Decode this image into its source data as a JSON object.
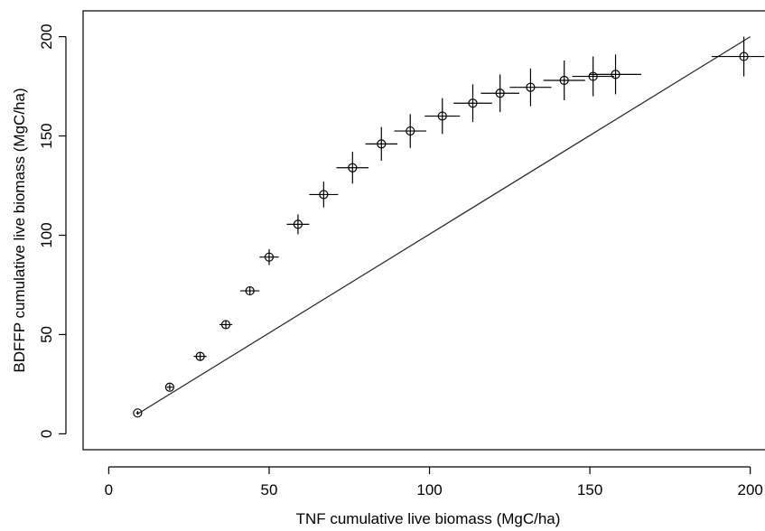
{
  "chart_data": {
    "type": "scatter",
    "title": "",
    "xlabel": "TNF cumulative live biomass (MgC/ha)",
    "ylabel": "BDFFP cumulative live biomass (MgC/ha)",
    "xlim": [
      -8,
      206
    ],
    "ylim": [
      -8,
      213
    ],
    "xticks": [
      0,
      50,
      100,
      150,
      200
    ],
    "yticks": [
      0,
      50,
      100,
      150,
      200
    ],
    "grid": false,
    "legend": "none",
    "point_color": "#000000",
    "reference_line": {
      "x": [
        9,
        200
      ],
      "y": [
        10,
        200
      ]
    },
    "points": [
      {
        "x": 9,
        "y": 10.5,
        "x_err": 0.5,
        "y_err": 1
      },
      {
        "x": 19,
        "y": 23.5,
        "x_err": 1,
        "y_err": 1.5
      },
      {
        "x": 28.5,
        "y": 39,
        "x_err": 2,
        "y_err": 2
      },
      {
        "x": 36.5,
        "y": 55,
        "x_err": 2,
        "y_err": 2
      },
      {
        "x": 44,
        "y": 72,
        "x_err": 3,
        "y_err": 2
      },
      {
        "x": 50,
        "y": 89,
        "x_err": 3,
        "y_err": 4
      },
      {
        "x": 59,
        "y": 105.5,
        "x_err": 3.5,
        "y_err": 5
      },
      {
        "x": 67,
        "y": 120.5,
        "x_err": 4.5,
        "y_err": 6.5
      },
      {
        "x": 76,
        "y": 134,
        "x_err": 5,
        "y_err": 8
      },
      {
        "x": 85,
        "y": 146,
        "x_err": 5,
        "y_err": 8.5
      },
      {
        "x": 94,
        "y": 152.5,
        "x_err": 5,
        "y_err": 8.5
      },
      {
        "x": 104,
        "y": 160,
        "x_err": 5.5,
        "y_err": 9
      },
      {
        "x": 113.5,
        "y": 166.5,
        "x_err": 6,
        "y_err": 9.5
      },
      {
        "x": 122,
        "y": 171.5,
        "x_err": 6,
        "y_err": 9.5
      },
      {
        "x": 131.5,
        "y": 174.5,
        "x_err": 6.5,
        "y_err": 9.5
      },
      {
        "x": 142,
        "y": 178,
        "x_err": 6.5,
        "y_err": 10
      },
      {
        "x": 151,
        "y": 180,
        "x_err": 6.5,
        "y_err": 10
      },
      {
        "x": 158,
        "y": 181,
        "x_err": 8,
        "y_err": 10
      },
      {
        "x": 198,
        "y": 190,
        "x_err": 10,
        "y_err": 10
      }
    ]
  }
}
